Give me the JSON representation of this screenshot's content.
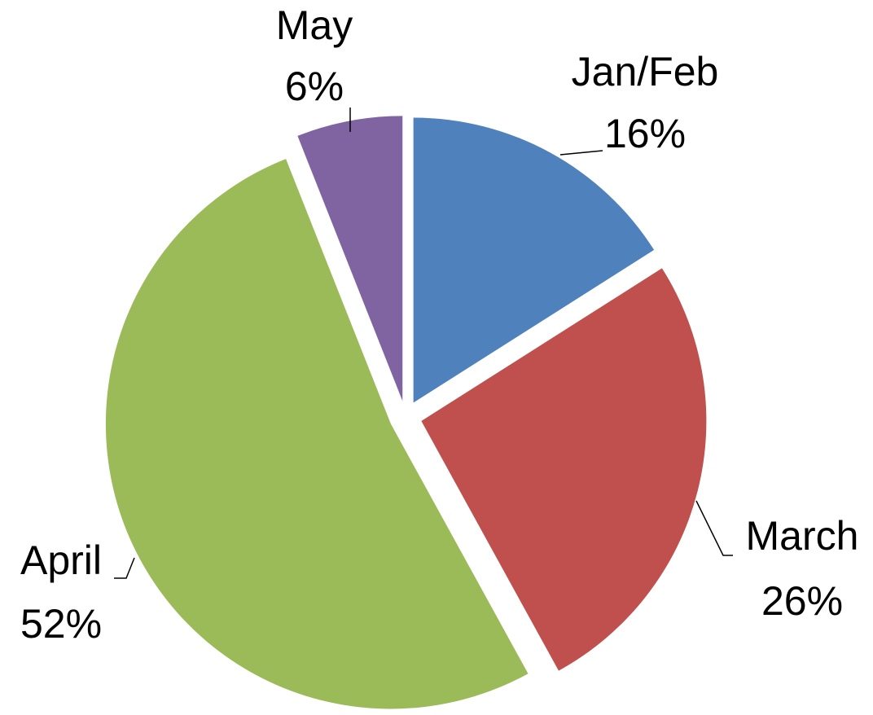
{
  "chart_data": {
    "type": "pie",
    "categories": [
      "Jan/Feb",
      "March",
      "April",
      "May"
    ],
    "values": [
      16,
      26,
      52,
      6
    ],
    "value_labels": [
      "16%",
      "26%",
      "52%",
      "6%"
    ],
    "colors": [
      "#4f81bd",
      "#c0504d",
      "#9bbb59",
      "#8064a2"
    ]
  }
}
